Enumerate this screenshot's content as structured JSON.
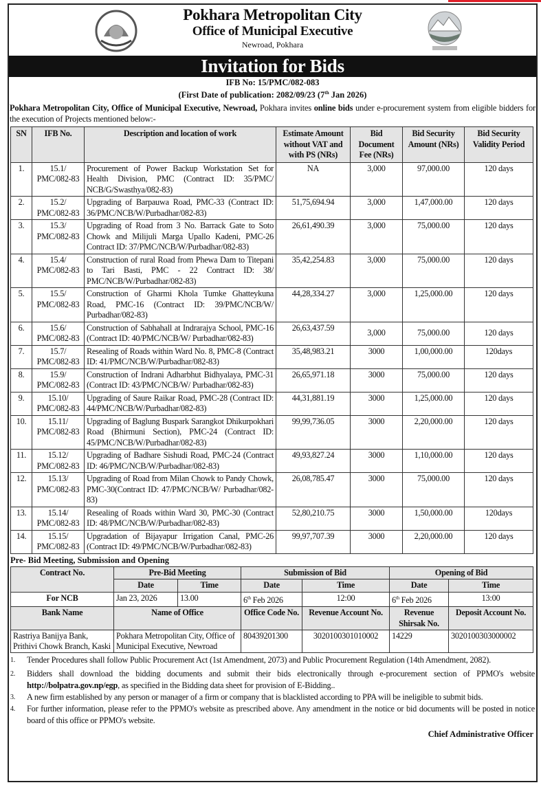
{
  "header": {
    "title": "Pokhara Metropolitan City",
    "subtitle": "Office of Municipal Executive",
    "address": "Newroad, Pokhara",
    "banner": "Invitation for Bids",
    "ifb_no": "IFB No: 15/PMC/082-083",
    "publication_prefix": "(First Date of publication: 2082/09/23 (7",
    "publication_sup": "th",
    "publication_suffix": " Jan 2026)"
  },
  "intro": {
    "bold1": "Pokhara Metropolitan City, Office of Municipal Executive, Newroad,",
    "t1": " Pokhara invites ",
    "bold2": "online bids",
    "t2": " under e-procurement system from eligible bidders for the execution of Projects mentioned below:-"
  },
  "table": {
    "headers": [
      "SN",
      "IFB No.",
      "Description and location of work",
      "Estimate Amount without VAT and with PS (NRs)",
      "Bid Document Fee (NRs)",
      "Bid Security Amount (NRs)",
      "Bid Security Validity Period"
    ],
    "rows": [
      [
        "1.",
        "15.1/ PMC/082-83",
        "Procurement of Power Backup Workstation Set for Health Division, PMC (Contract ID: 35/PMC/ NCB/G/Swasthya/082-83)",
        "NA",
        "3,000",
        "97,000.00",
        "120 days"
      ],
      [
        "2.",
        "15.2/ PMC/082-83",
        "Upgrading of Barpauwa Road, PMC-33 (Contract ID: 36/PMC/NCB/W/Purbadhar/082-83)",
        "51,75,694.94",
        "3,000",
        "1,47,000.00",
        "120 days"
      ],
      [
        "3.",
        "15.3/ PMC/082-83",
        "Upgrading of Road from 3 No. Barrack Gate to Soto Chowk and Milijuli Marga Upallo Kadeni, PMC-26 Contract ID: 37/PMC/NCB/W/Purbadhar/082-83)",
        "26,61,490.39",
        "3,000",
        "75,000.00",
        "120 days"
      ],
      [
        "4.",
        "15.4/ PMC/082-83",
        "Construction of rural Road from Phewa Dam to Titepani to Tari Basti, PMC - 22 Contract ID: 38/ PMC/NCB/W/Purbadhar/082-83)",
        "35,42,254.83",
        "3,000",
        "75,000.00",
        "120 days"
      ],
      [
        "5.",
        "15.5/ PMC/082-83",
        "Construction of Gharmi Khola Tumke Ghatteykuna Road, PMC-16 (Contract ID: 39/PMC/NCB/W/ Purbadhar/082-83)",
        "44,28,334.27",
        "3,000",
        "1,25,000.00",
        "120 days"
      ],
      [
        "6.",
        "15.6/ PMC/082-83",
        "Construction of Sabhahall at Indrarajya School, PMC-16 (Contract ID: 40/PMC/NCB/W/ Purbadhar/082-83)",
        "26,63,437.59",
        "3,000",
        "75,000.00",
        "120 days"
      ],
      [
        "7.",
        "15.7/ PMC/082-83",
        "Resealing of Roads within Ward No. 8, PMC-8 (Contract ID: 41/PMC/NCB/W/Purbadhar/082-83)",
        "35,48,983.21",
        "3000",
        "1,00,000.00",
        "120days"
      ],
      [
        "8.",
        "15.9/ PMC/082-83",
        "Construction of Indrani Adharbhut Bidhyalaya, PMC-31 (Contract ID: 43/PMC/NCB/W/ Purbadhar/082-83)",
        "26,65,971.18",
        "3000",
        "75,000.00",
        "120 days"
      ],
      [
        "9.",
        "15.10/ PMC/082-83",
        "Upgrading of Saure Raikar Road, PMC-28 (Contract ID: 44/PMC/NCB/W/Purbadhar/082-83)",
        "44,31,881.19",
        "3000",
        "1,25,000.00",
        "120 days"
      ],
      [
        "10.",
        "15.11/ PMC/082-83",
        "Upgrading of Baglung Buspark Sarangkot Dhikurpokhari Road (Bhirmuni Section), PMC-24 (Contract ID: 45/PMC/NCB/W/Purbadhar/082-83)",
        "99,99,736.05",
        "3000",
        "2,20,000.00",
        "120 days"
      ],
      [
        "11.",
        "15.12/ PMC/082-83",
        "Upgrading of Badhare Sishudi Road, PMC-24 (Contract ID: 46/PMC/NCB/W/Purbadhar/082-83)",
        "49,93,827.24",
        "3000",
        "1,10,000.00",
        "120 days"
      ],
      [
        "12.",
        "15.13/ PMC/082-83",
        "Upgrading of Road from Milan Chowk to Pandy Chowk, PMC-30(Contract ID: 47/PMC/NCB/W/ Purbadhar/082-83)",
        "26,08,785.47",
        "3000",
        "75,000.00",
        "120 days"
      ],
      [
        "13.",
        "15.14/ PMC/082-83",
        "Resealing of Roads within Ward 30, PMC-30 (Contract ID: 48/PMC/NCB/W/Purbadhar/082-83)",
        "52,80,210.75",
        "3000",
        "1,50,000.00",
        "120days"
      ],
      [
        "14.",
        "15.15/ PMC/082-83",
        "Upgradation of Bijayapur Irrigation Canal, PMC-26 (Contract ID: 49/PMC/NCB/W/Purbadhar/082-83)",
        "99,97,707.39",
        "3000",
        "2,20,000.00",
        "120 days"
      ]
    ]
  },
  "schedule": {
    "title": "Pre- Bid Meeting, Submission and Opening",
    "contract_no": "Contract No.",
    "prebid": "Pre-Bid Meeting",
    "submission": "Submission of Bid",
    "opening": "Opening of Bid",
    "date": "Date",
    "time": "Time",
    "contract": "For NCB",
    "prebid_date": "Jan 23, 2026",
    "prebid_time": "13.00",
    "sub_date_pre": "6",
    "sub_date_sup": "th",
    "sub_date_post": " Feb 2026",
    "sub_time": "12:00",
    "open_date_pre": "6",
    "open_date_sup": "th",
    "open_date_post": " Feb 2026",
    "open_time": "13:00",
    "bank_headers": [
      "Bank Name",
      "Name of Office",
      "Office Code No.",
      "Revenue Account No.",
      "Revenue Shirsak No.",
      "Deposit Account No."
    ],
    "bank_row": [
      "Rastriya Banijya Bank, Prithivi Chowk Branch, Kaski",
      "Pokhara Metropolitan City, Office of Municipal Executive, Newroad",
      "80439201300",
      "3020100301010002",
      "14229",
      "3020100303000002"
    ]
  },
  "notes": [
    {
      "n": "1.",
      "text": "Tender Procedures shall follow Public Procurement Act (1st Amendment, 2073) and Public Procurement Regulation (14th Amendment, 2082)."
    },
    {
      "n": "2.",
      "pre": "Bidders shall download the bidding documents and submit their bids electronically through e-procurement section of PPMO's website ",
      "link": "http://bolpatra.gov.np/egp",
      "post": ", as specified in the Bidding data sheet for provision of E-Bidding.."
    },
    {
      "n": "3.",
      "text": "A new firm established by any person or manager of a firm or company that is blacklisted according to PPA will be ineligible to submit bids."
    },
    {
      "n": "4.",
      "text": "For further information, please refer to the PPMO's website as prescribed above. Any amendment in the notice or bid documents will be posted in notice board of this office or PPMO's website."
    }
  ],
  "signature": "Chief Administrative Officer",
  "colors": {
    "banner": "#111111",
    "header_fill": "#e4e4e4",
    "accent_red": "#e0202a"
  }
}
